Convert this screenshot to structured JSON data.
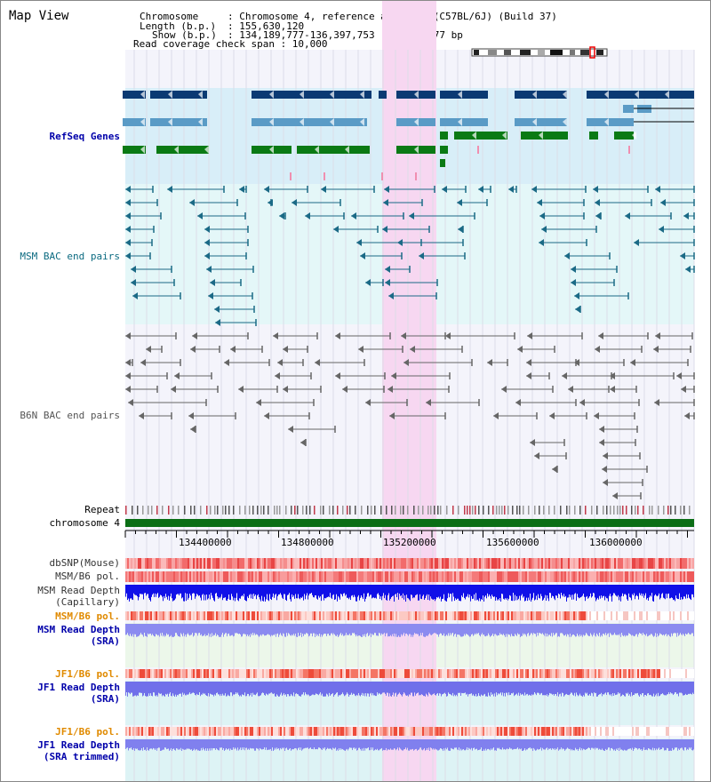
{
  "panel": {
    "title": "Map View"
  },
  "header": {
    "chromosome_key": "Chromosome",
    "chromosome_val": ": Chromosome 4, reference assembly (C57BL/6J) (Build 37)",
    "length_key": "Length (b.p.)",
    "length_val": ": 155,630,120",
    "show_key": "Show (b.p.)",
    "show_val": ": 134,189,777-136,397,753 : 2,207,977 bp",
    "coverage": "Read coverage check span : 10,000"
  },
  "tracks": {
    "refseq": "RefSeq Genes",
    "msm_bac": "MSM BAC end pairs",
    "b6n_bac": "B6N BAC end pairs",
    "repeat": "Repeat",
    "chromosome": "chromosome 4",
    "dbsnp": "dbSNP(Mouse)",
    "msm_b6_pol": "MSM/B6 pol.",
    "msm_read_depth_l1": "MSM Read Depth",
    "msm_read_depth_l2": "(Capillary)",
    "msm_b6_pol_2": "MSM/B6 pol.",
    "msm_read_depth_sra_l1": "MSM Read Depth",
    "msm_read_depth_sra_l2": "(SRA)",
    "jf1_b6_pol": "JF1/B6 pol.",
    "jf1_read_depth_sra_l1": "JF1 Read Depth",
    "jf1_read_depth_sra_l2": "(SRA)",
    "jf1_b6_pol_2": "JF1/B6 pol.",
    "jf1_read_depth_trim_l1": "JF1 Read Depth",
    "jf1_read_depth_trim_l2": "(SRA trimmed)"
  },
  "axis": {
    "ticks": [
      "134400000",
      "134800000",
      "135200000",
      "135600000",
      "136000000"
    ]
  },
  "colors": {
    "highlight": "#f7d7f1",
    "refseq_dark": "#0b3a73",
    "refseq_light": "#5a9bc6",
    "refseq_green": "#0a7a14",
    "msm_bac": "#1b6a86",
    "b6n_bac": "#666666",
    "label_blue": "#0000aa",
    "label_orange": "#e08a00",
    "label_teal": "#0b6a80"
  }
}
